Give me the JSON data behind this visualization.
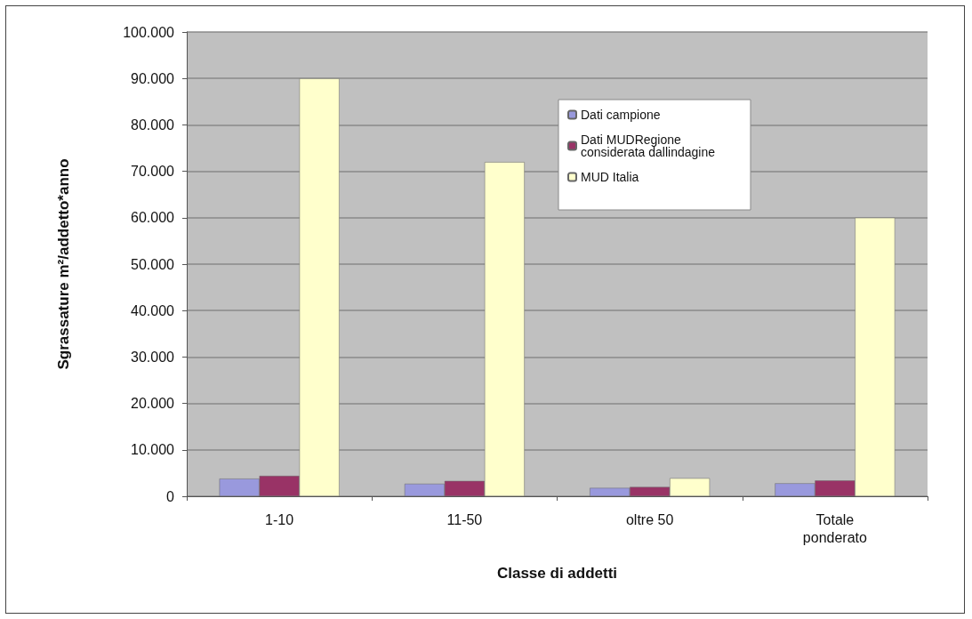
{
  "chart_data": {
    "type": "bar",
    "xlabel": "Classe di addetti",
    "ylabel": "Sgrassature m²/addetto*anno",
    "categories": [
      "1-10",
      "11-50",
      "oltre 50",
      "Totale\nponderato"
    ],
    "series": [
      {
        "name": "Dati campione",
        "color": "#9999dd",
        "values": [
          3800,
          2700,
          1800,
          2800
        ]
      },
      {
        "name": "Dati MUDRegione\nconsiderata dallindagine",
        "color": "#993366",
        "values": [
          4400,
          3300,
          2000,
          3400
        ]
      },
      {
        "name": "MUD Italia",
        "color": "#ffffcc",
        "values": [
          90000,
          72000,
          3900,
          60000
        ]
      }
    ],
    "ylim": [
      0,
      100000
    ],
    "yticks": [
      {
        "value": 0,
        "label": "0"
      },
      {
        "value": 10000,
        "label": "10.000"
      },
      {
        "value": 20000,
        "label": "20.000"
      },
      {
        "value": 30000,
        "label": "30.000"
      },
      {
        "value": 40000,
        "label": "40.000"
      },
      {
        "value": 50000,
        "label": "50.000"
      },
      {
        "value": 60000,
        "label": "60.000"
      },
      {
        "value": 70000,
        "label": "70.000"
      },
      {
        "value": 80000,
        "label": "80.000"
      },
      {
        "value": 90000,
        "label": "90.000"
      },
      {
        "value": 100000,
        "label": "100.000"
      }
    ],
    "grid": "y",
    "legend": "top right"
  }
}
